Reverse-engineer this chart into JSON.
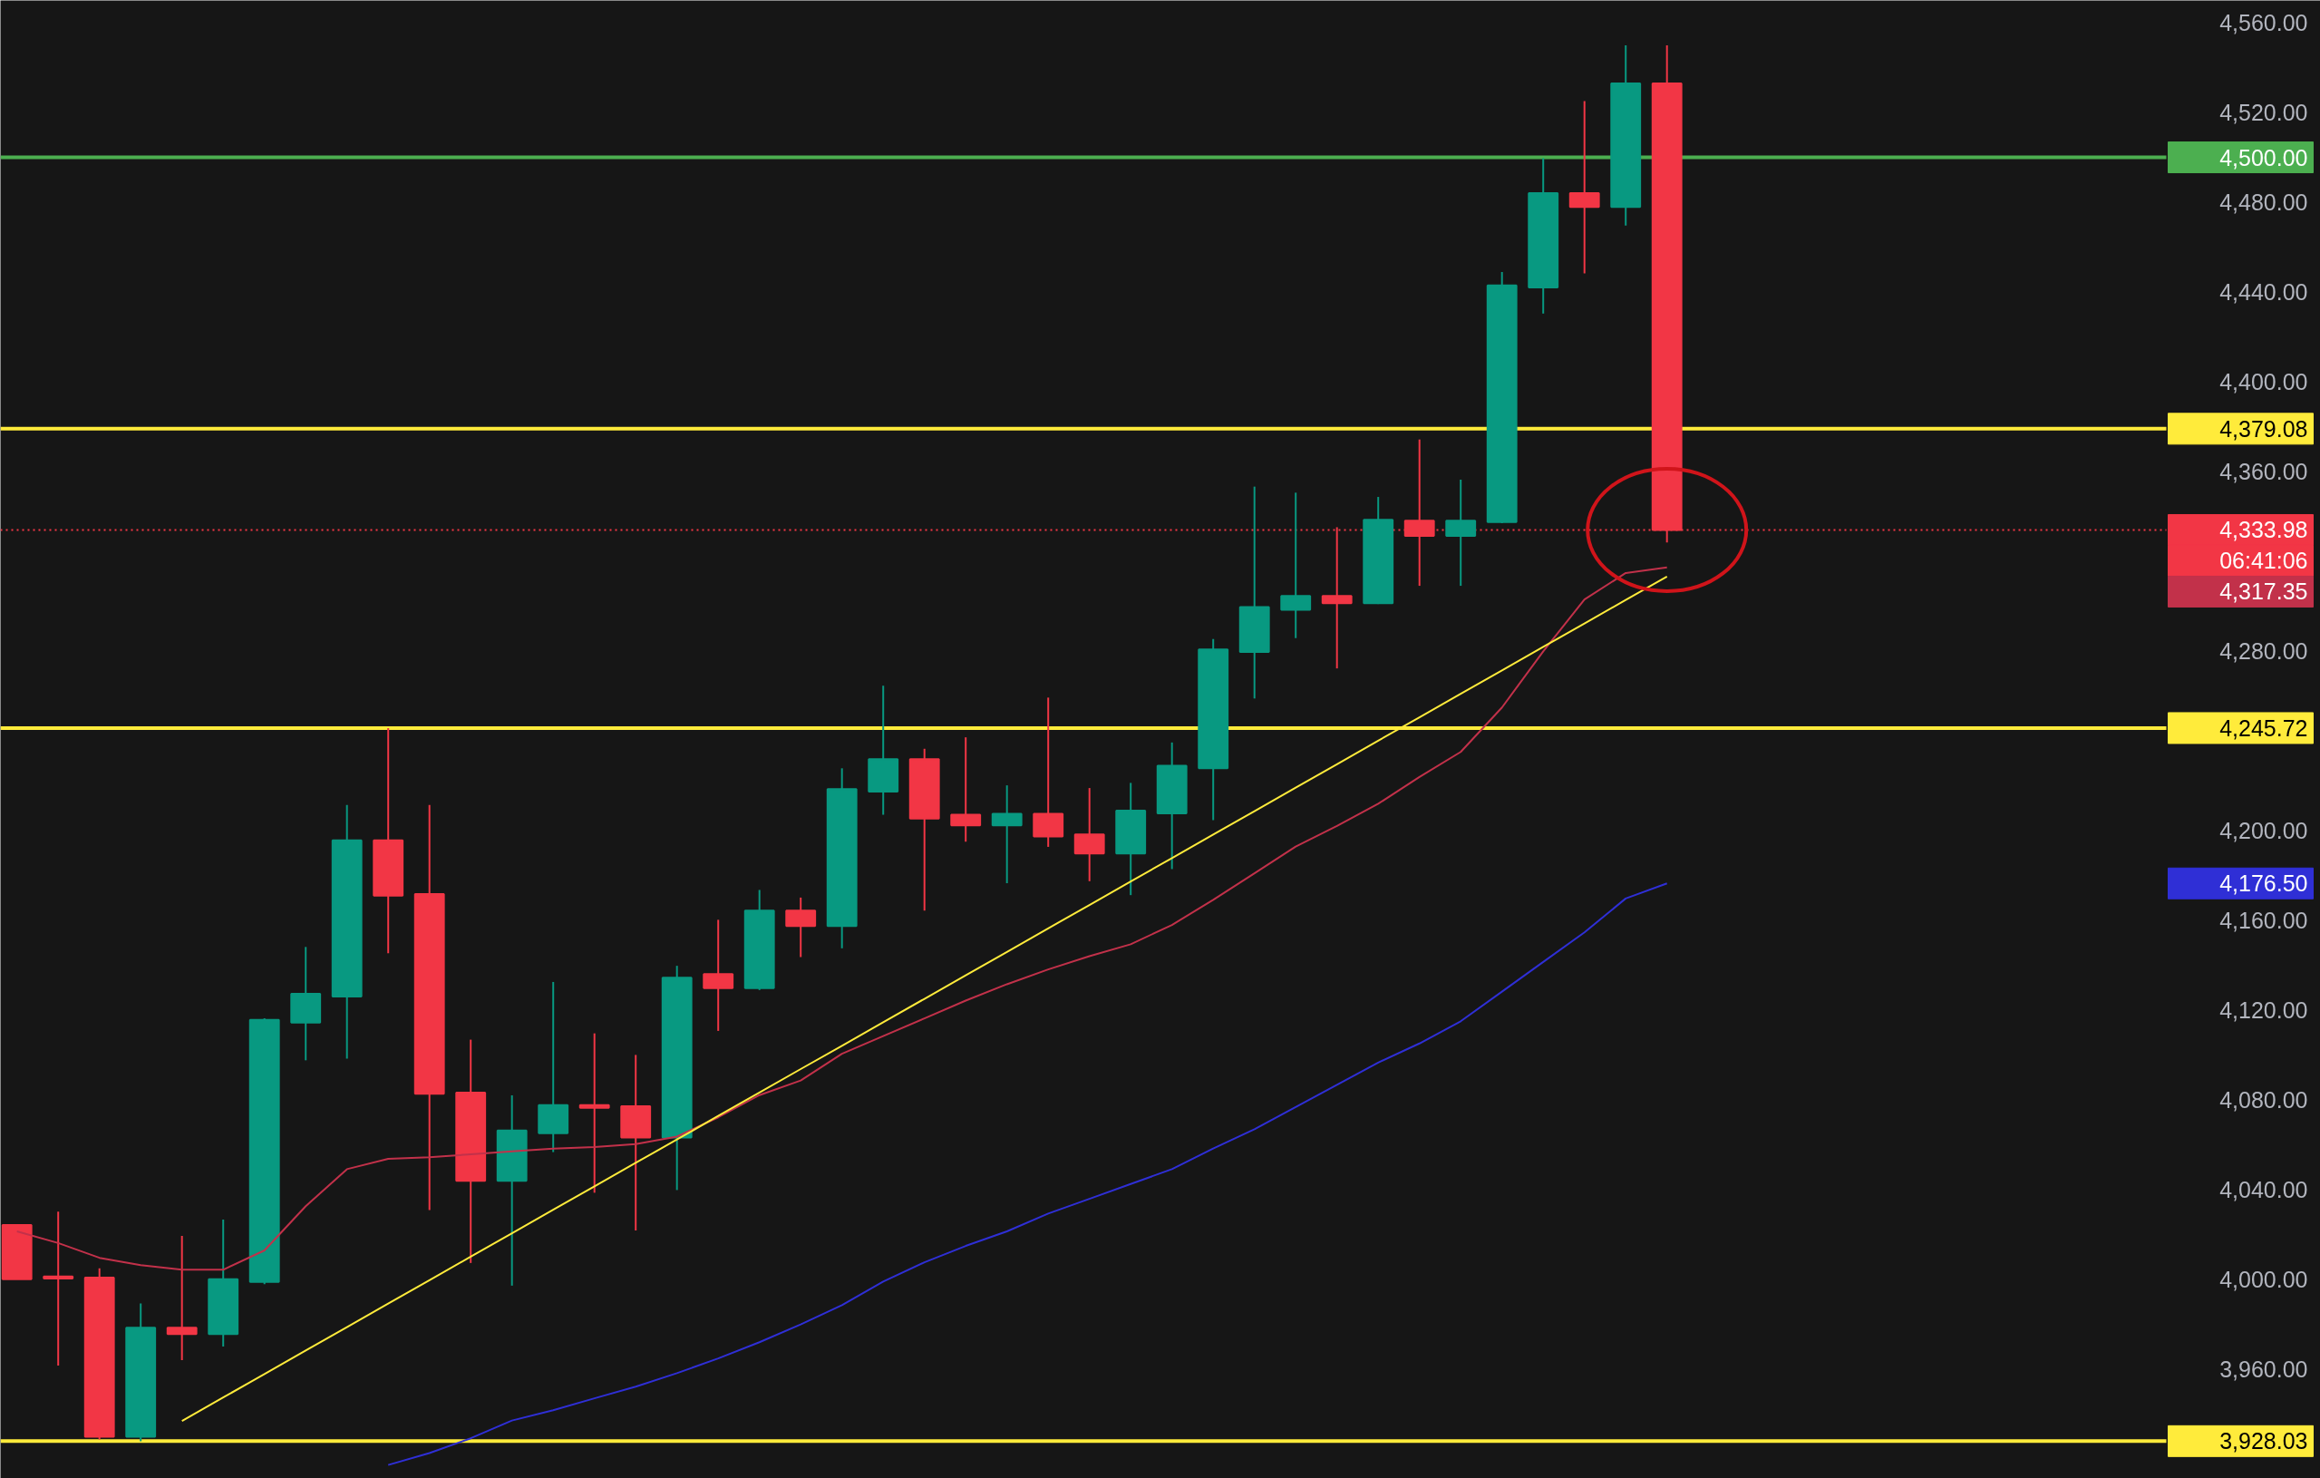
{
  "chart_data": {
    "type": "candlestick",
    "categories": [
      null,
      null,
      null,
      null,
      null,
      null,
      null,
      null,
      null,
      null,
      null,
      null,
      null,
      null,
      null,
      null,
      null,
      null,
      null,
      null,
      null,
      null,
      null,
      null,
      null,
      null,
      null,
      null,
      null,
      null,
      null,
      null,
      null,
      null,
      null,
      null,
      null,
      null,
      null,
      null,
      null
    ],
    "ohlc": [
      [
        4024.3,
        4024.3,
        4000.2,
        4000.2
      ],
      [
        4001.4,
        4030.3,
        3961.7,
        4000.5
      ],
      [
        4000.9,
        4005.0,
        3928.8,
        3930.0
      ],
      [
        3930.0,
        3989.4,
        3928.0,
        3978.6
      ],
      [
        3978.6,
        4019.5,
        3964.1,
        3975.7
      ],
      [
        3975.7,
        4026.7,
        3970.2,
        4000.2
      ],
      [
        3999.0,
        4116.4,
        3998.0,
        4115.7
      ],
      [
        4114.5,
        4148.2,
        4097.7,
        4127.3
      ],
      [
        4126.1,
        4211.5,
        4098.4,
        4195.7
      ],
      [
        4195.7,
        4245.7,
        4145.4,
        4171.1
      ],
      [
        4171.8,
        4211.5,
        4031.0,
        4082.8
      ],
      [
        4083.3,
        4106.9,
        4007.4,
        4044.0
      ],
      [
        4044.0,
        4082.1,
        3997.3,
        4066.4
      ],
      [
        4065.2,
        4132.6,
        4056.8,
        4077.7
      ],
      [
        4077.7,
        4109.7,
        4038.7,
        4076.5
      ],
      [
        4077.2,
        4100.1,
        4021.9,
        4063.3
      ],
      [
        4063.3,
        4139.8,
        4039.9,
        4134.5
      ],
      [
        4136.1,
        4160.3,
        4110.8,
        4129.9
      ],
      [
        4129.9,
        4173.6,
        4129.0,
        4164.4
      ],
      [
        4164.4,
        4170.2,
        4143.7,
        4157.5
      ],
      [
        4157.5,
        4227.8,
        4147.6,
        4218.5
      ],
      [
        4217.4,
        4264.6,
        4207.1,
        4231.9
      ],
      [
        4231.9,
        4236.5,
        4164.4,
        4205.4
      ],
      [
        4207.1,
        4241.6,
        4195.1,
        4202.4
      ],
      [
        4202.4,
        4220.2,
        4176.6,
        4207.5
      ],
      [
        4207.5,
        4259.3,
        4192.8,
        4197.4
      ],
      [
        4198.3,
        4219.0,
        4177.5,
        4189.8
      ],
      [
        4189.8,
        4221.3,
        4171.3,
        4208.9
      ],
      [
        4207.7,
        4239.3,
        4182.9,
        4228.9
      ],
      [
        4227.8,
        4285.4,
        4204.7,
        4280.7
      ],
      [
        4279.6,
        4353.3,
        4258.9,
        4299.6
      ],
      [
        4298.4,
        4350.6,
        4285.8,
        4304.6
      ],
      [
        4304.6,
        4335.2,
        4272.3,
        4301.3
      ],
      [
        4301.3,
        4348.7,
        4301.0,
        4338.5
      ],
      [
        4338.1,
        4374.3,
        4309.1,
        4331.3
      ],
      [
        4331.3,
        4356.4,
        4309.1,
        4338.1
      ],
      [
        4337.5,
        4448.9,
        4337.0,
        4442.9
      ],
      [
        4442.0,
        4499.6,
        4430.4,
        4484.1
      ],
      [
        4484.1,
        4525.1,
        4448.3,
        4477.9
      ],
      [
        4477.9,
        4549.9,
        4469.6,
        4532.9
      ],
      [
        4532.9,
        4549.9,
        4328.4,
        4333.98
      ]
    ],
    "colors": [
      "#f23645",
      "#f23645",
      "#f23645",
      "#089981",
      "#f23645",
      "#089981",
      "#089981",
      "#089981",
      "#089981",
      "#f23645",
      "#f23645",
      "#f23645",
      "#089981",
      "#089981",
      "#f23645",
      "#f23645",
      "#089981",
      "#f23645",
      "#089981",
      "#f23645",
      "#089981",
      "#089981",
      "#f23645",
      "#f23645",
      "#089981",
      "#f23645",
      "#f23645",
      "#089981",
      "#089981",
      "#089981",
      "#089981",
      "#089981",
      "#f23645",
      "#089981",
      "#f23645",
      "#089981",
      "#089981",
      "#089981",
      "#f23645",
      "#089981",
      "#f23645"
    ],
    "series": [
      {
        "type": "line",
        "color": "#c2314a",
        "values": [
          4021.5,
          4016.3,
          4009.7,
          4006.4,
          4004.4,
          4004.4,
          4013.0,
          4032.7,
          4049.2,
          4053.8,
          4054.5,
          4055.8,
          4057.1,
          4058.4,
          4059.1,
          4060.4,
          4063.7,
          4072.3,
          4082.2,
          4088.7,
          4100.6,
          4108.5,
          4116.4,
          4124.3,
          4131.6,
          4138.2,
          4144.1,
          4149.4,
          4158.0,
          4169.2,
          4181.0,
          4192.9,
          4202.1,
          4212.0,
          4223.9,
          4235.1,
          4254.9,
          4279.9,
          4303.0,
          4314.8,
          4317.35
        ]
      },
      {
        "type": "line",
        "color": "#2f2fd6",
        "values": [
          null,
          null,
          null,
          null,
          null,
          null,
          null,
          null,
          null,
          3917.4,
          3922.7,
          3929.3,
          3937.2,
          3941.8,
          3947.1,
          3952.3,
          3958.3,
          3964.9,
          3972.1,
          3980.0,
          3988.6,
          3999.1,
          4007.7,
          4015.0,
          4021.5,
          4029.4,
          4036.0,
          4042.6,
          4049.2,
          4058.4,
          4067.0,
          4076.9,
          4086.8,
          4096.7,
          4105.2,
          4115.1,
          4128.3,
          4141.5,
          4154.7,
          4169.8,
          4176.5
        ]
      },
      {
        "type": "line",
        "color": "#ffeb3b",
        "values": [
          null,
          null,
          null,
          null,
          3937.0,
          3947.5,
          3957.9,
          3968.4,
          3978.8,
          3989.3,
          3999.7,
          4010.2,
          4020.6,
          4031.1,
          4041.5,
          4052.0,
          4062.4,
          4072.9,
          4083.3,
          4093.8,
          4104.2,
          4114.7,
          4125.1,
          4135.6,
          4146.0,
          4156.5,
          4166.9,
          4177.4,
          4187.8,
          4198.3,
          4208.7,
          4219.2,
          4229.6,
          4240.1,
          4250.5,
          4261.0,
          4271.4,
          4281.9,
          4292.3,
          4302.8,
          4313.2
        ]
      }
    ],
    "ref_lines": [
      {
        "axis": "y",
        "value": 4500,
        "label": "4,500.00",
        "color": "#4caf50"
      },
      {
        "axis": "y",
        "value": 4379.08,
        "label": "4,379.08",
        "color": "#ffeb3b"
      },
      {
        "axis": "y",
        "value": 4245.72,
        "label": "4,245.72",
        "color": "#ffeb3b"
      },
      {
        "axis": "y",
        "value": 3928.03,
        "label": "3,928.03",
        "color": "#ffeb3b"
      },
      {
        "axis": "y",
        "value": 4333.98,
        "label": "4,333.98",
        "color": "#f23645",
        "line_style": "dotted"
      }
    ],
    "annotations": [
      "06:41:06",
      "4,317.35",
      "4,176.50"
    ],
    "ylim": [
      3911.4,
      4569.9
    ],
    "yticks": [
      {
        "value": 3960,
        "label": "3,960.00"
      },
      {
        "value": 4000,
        "label": "4,000.00"
      },
      {
        "value": 4040,
        "label": "4,040.00"
      },
      {
        "value": 4080,
        "label": "4,080.00"
      },
      {
        "value": 4120,
        "label": "4,120.00"
      },
      {
        "value": 4160,
        "label": "4,160.00"
      },
      {
        "value": 4200,
        "label": "4,200.00"
      },
      {
        "value": 4280,
        "label": "4,280.00"
      },
      {
        "value": 4360,
        "label": "4,360.00"
      },
      {
        "value": 4400,
        "label": "4,400.00"
      },
      {
        "value": 4440,
        "label": "4,440.00"
      },
      {
        "value": 4480,
        "label": "4,480.00"
      },
      {
        "value": 4520,
        "label": "4,520.00"
      },
      {
        "value": 4560,
        "label": "4,560.00"
      }
    ],
    "tick_labels": "y",
    "grid": false
  }
}
